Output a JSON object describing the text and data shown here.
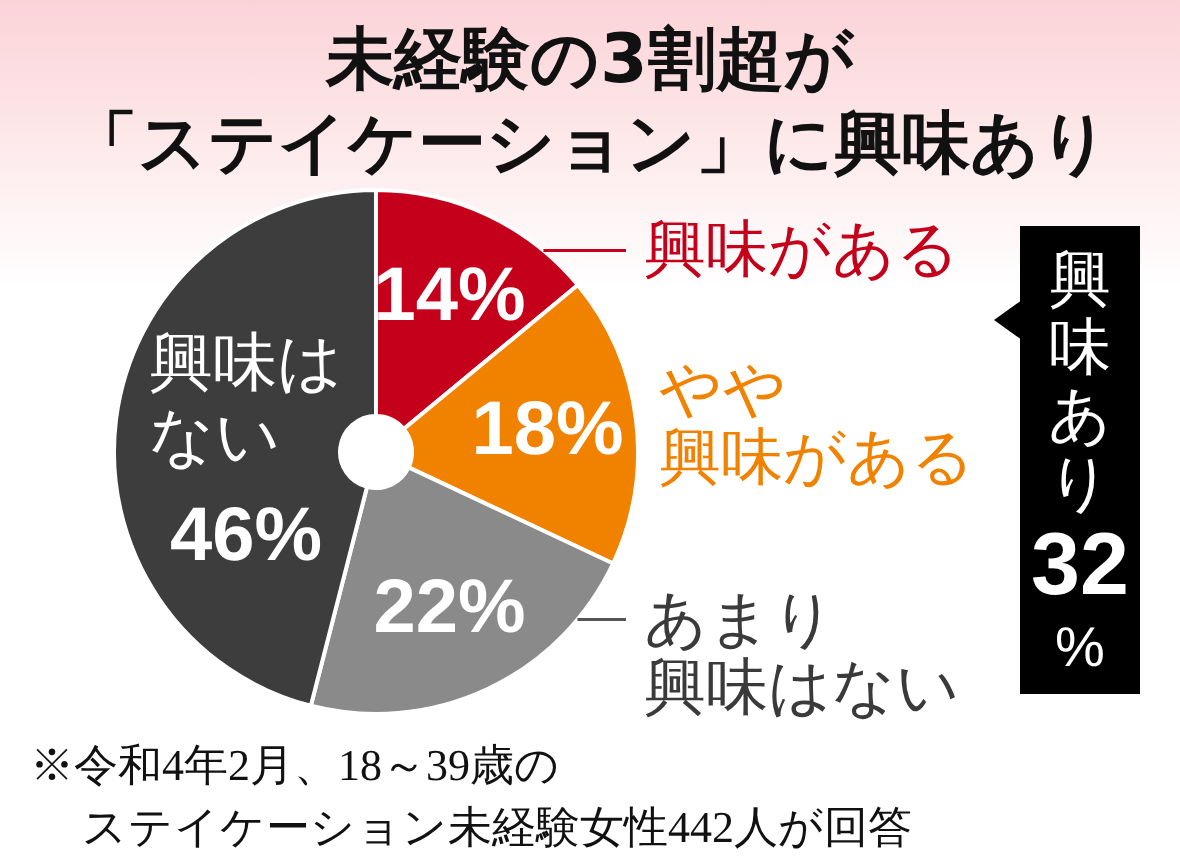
{
  "chart_data": {
    "type": "donut",
    "title": "未経験の3割超が「ステイケーション」に興味あり",
    "categories": [
      "興味がある",
      "やや興味がある",
      "あまり興味はない",
      "興味はない"
    ],
    "values": [
      14,
      18,
      22,
      46
    ],
    "value_labels": [
      "14%",
      "18%",
      "22%",
      "46%"
    ],
    "colors": [
      "#c4001a",
      "#f18200",
      "#8a8a8a",
      "#3d3d3d"
    ],
    "annotations": [
      "興味あり32%",
      "※令和4年2月、18～39歳のステイケーション未経験女性442人が回答"
    ]
  }
}
